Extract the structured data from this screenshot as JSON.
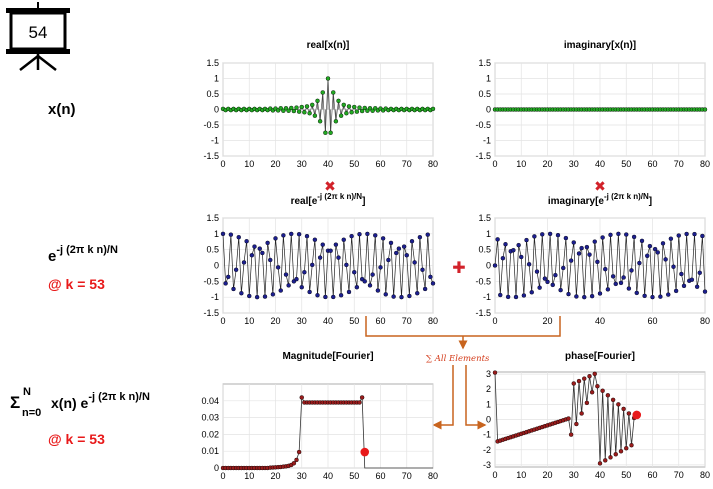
{
  "slide": {
    "number": "54"
  },
  "left_labels": {
    "xn": "x(n)",
    "kernel_base": "e",
    "kernel_exp": "-j (2π k n)/N",
    "k_value_1": "@ k = 53",
    "sum_sigma": "Σ",
    "sum_upper": "N",
    "sum_lower": "n=0",
    "sum_body": "x(n) e",
    "sum_exp": "-j (2π k n)/N",
    "k_value_2": "@ k = 53"
  },
  "operators": {
    "multiply": "✖",
    "plus": "✚"
  },
  "sum_note": "∑ All Elements",
  "colors": {
    "green": "#22a822",
    "blue": "#1c1f8f",
    "darkred": "#9a1c1c",
    "red": "#e8191a",
    "arrow": "#c8641e"
  },
  "chart_data": [
    {
      "id": "p1",
      "type": "line",
      "style": "stem",
      "title": "real[x(n)]",
      "title_base": "real[x(n)]",
      "title_sup": "",
      "xlim": [
        0,
        80
      ],
      "ylim": [
        -1.5,
        1.5
      ],
      "xticks": [
        0,
        10,
        20,
        30,
        40,
        50,
        60,
        70,
        80
      ],
      "yticks": [
        -1.5,
        -1,
        -0.5,
        0,
        0.5,
        1,
        1.5
      ],
      "ytick_labels": [
        "-1.5",
        "-1",
        "-0.5",
        "0",
        "0.5",
        "1",
        "1.5"
      ],
      "series": [
        {
          "color": "#22a822",
          "x_start": 0,
          "values": [
            0.02,
            -0.02,
            0.02,
            -0.02,
            0.02,
            -0.02,
            0.02,
            -0.02,
            0.02,
            -0.02,
            0.02,
            -0.02,
            0.02,
            -0.02,
            0.02,
            -0.02,
            0.02,
            -0.02,
            0.03,
            -0.03,
            0.03,
            -0.03,
            0.04,
            -0.04,
            0.04,
            -0.04,
            0.05,
            -0.05,
            0.06,
            -0.07,
            0.08,
            -0.09,
            0.1,
            -0.12,
            0.15,
            -0.2,
            0.28,
            -0.38,
            0.55,
            -0.75,
            1.0,
            -0.75,
            0.55,
            -0.38,
            0.28,
            -0.2,
            0.15,
            -0.12,
            0.1,
            -0.09,
            0.08,
            -0.07,
            0.06,
            -0.05,
            0.05,
            -0.04,
            0.04,
            -0.04,
            0.04,
            -0.03,
            0.03,
            -0.03,
            0.03,
            -0.02,
            0.02,
            -0.02,
            0.02,
            -0.02,
            0.02,
            -0.02,
            0.02,
            -0.02,
            0.02,
            -0.02,
            0.02,
            -0.02,
            0.02,
            -0.02,
            0.02,
            -0.02,
            0.02
          ]
        }
      ]
    },
    {
      "id": "p2",
      "type": "line",
      "style": "stem",
      "title": "imaginary[x(n)]",
      "title_base": "imaginary[x(n)]",
      "title_sup": "",
      "xlim": [
        0,
        80
      ],
      "ylim": [
        -1.5,
        1.5
      ],
      "xticks": [
        0,
        10,
        20,
        30,
        40,
        50,
        60,
        70,
        80
      ],
      "yticks": [
        -1.5,
        -1,
        -0.5,
        0,
        0.5,
        1,
        1.5
      ],
      "ytick_labels": [
        "-1.5",
        "-1",
        "-0.5",
        "0",
        "0.5",
        "1",
        "1.5"
      ],
      "series": [
        {
          "color": "#22a822",
          "x_start": 0,
          "values": [
            0
          ],
          "constant_zero_count": 81
        }
      ]
    },
    {
      "id": "p3",
      "type": "line",
      "style": "zigzag",
      "title": "real[e^-j (2π k n)/N]",
      "title_base": "real[e",
      "title_sup": "-j (2π k n)/N",
      "title_end": "]",
      "xlim": [
        0,
        80
      ],
      "ylim": [
        -1.5,
        1.5
      ],
      "xticks": [
        0,
        10,
        20,
        30,
        40,
        50,
        60,
        70,
        80
      ],
      "yticks": [
        -1.5,
        -1,
        -0.5,
        0,
        0.5,
        1,
        1.5
      ],
      "ytick_labels": [
        "-1.5",
        "-1",
        "-0.5",
        "0",
        "0.5",
        "1",
        "1.5"
      ],
      "series": [
        {
          "color": "#1c1f8f",
          "n": 81,
          "func": "cos",
          "k": 53
        }
      ]
    },
    {
      "id": "p4",
      "type": "line",
      "style": "zigzag",
      "title": "imaginary[e^-j (2π k n)/N]",
      "title_base": "imaginary[e",
      "title_sup": "-j (2π k n)/N",
      "title_end": "]",
      "xlim": [
        0,
        80
      ],
      "ylim": [
        -1.5,
        1.5
      ],
      "xticks": [
        0,
        20,
        40,
        60,
        80
      ],
      "yticks": [
        -1.5,
        -1,
        -0.5,
        0,
        0.5,
        1,
        1.5
      ],
      "ytick_labels": [
        "-1.5",
        "-1",
        "-0.5",
        "0",
        "0.5",
        "1",
        "1.5"
      ],
      "series": [
        {
          "color": "#1c1f8f",
          "n": 81,
          "func": "-sin",
          "k": 53
        }
      ]
    },
    {
      "id": "p5",
      "type": "line",
      "style": "magnitude",
      "title": "Magnitude[Fourier]",
      "title_base": "Magnitude[Fourier]",
      "title_sup": "",
      "xlim": [
        0,
        80
      ],
      "ylim": [
        0,
        0.05
      ],
      "xticks": [
        0,
        10,
        20,
        30,
        40,
        50,
        60,
        70,
        80
      ],
      "yticks": [
        0,
        0.01,
        0.02,
        0.03,
        0.04
      ],
      "ytick_labels": [
        "0",
        "0.01",
        "0.02",
        "0.03",
        "0.04"
      ],
      "series": [
        {
          "color": "#9a1c1c",
          "values": [
            0,
            0,
            0,
            0,
            0,
            0,
            0,
            0,
            0,
            0,
            0,
            0,
            0,
            0,
            0,
            0,
            0,
            0,
            0.0002,
            0.0003,
            0.0004,
            0.0005,
            0.0006,
            0.0008,
            0.001,
            0.0013,
            0.0018,
            0.0028,
            0.0048,
            0.0095,
            0.042,
            0.039,
            0.039,
            0.039,
            0.039,
            0.039,
            0.039,
            0.039,
            0.039,
            0.039,
            0.039,
            0.039,
            0.039,
            0.039,
            0.039,
            0.039,
            0.039,
            0.039,
            0.039,
            0.039,
            0.039,
            0.039,
            0.039,
            0.042
          ],
          "highlight": {
            "x": 54,
            "y": 0.0095
          }
        }
      ]
    },
    {
      "id": "p6",
      "type": "line",
      "style": "phase",
      "title": "phase[Fourier]",
      "title_base": "phase[Fourier]",
      "title_sup": "",
      "xlim": [
        0,
        80
      ],
      "ylim": [
        -3.14,
        3.14
      ],
      "xticks": [
        0,
        10,
        20,
        30,
        40,
        50,
        60,
        70,
        80
      ],
      "yticks": [
        -3,
        -2,
        -1,
        0,
        1,
        2,
        3
      ],
      "ytick_labels": [
        "-3",
        "-2",
        "-1",
        "0",
        "1",
        "2",
        "3"
      ],
      "series": [
        {
          "color": "#9a1c1c",
          "highlight": {
            "x": 54,
            "y": 0.3
          }
        }
      ]
    }
  ]
}
